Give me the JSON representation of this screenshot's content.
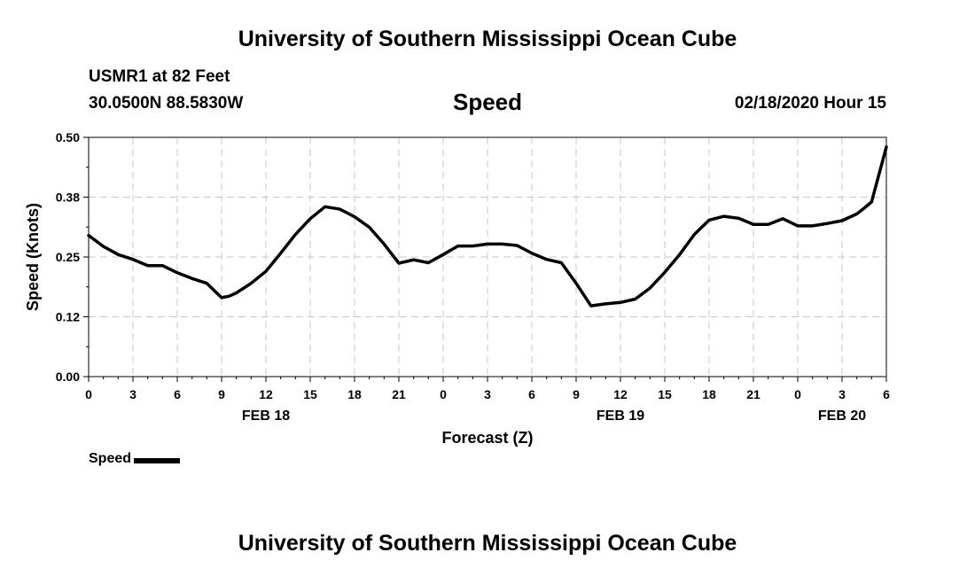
{
  "header": {
    "title": "University of Southern Mississippi Ocean Cube",
    "station": "USMR1 at 82 Feet",
    "coordinates": "30.0500N 88.5830W",
    "variable": "Speed",
    "timestamp": "02/18/2020 Hour 15"
  },
  "footer": {
    "title": "University of Southern Mississippi Ocean Cube"
  },
  "legend": {
    "label": "Speed",
    "color": "#000000"
  },
  "chart_data": {
    "type": "line",
    "xlabel": "Forecast (Z)",
    "ylabel": "Speed (Knots)",
    "x_unit": "hours from 00Z FEB 18",
    "xlim": [
      0,
      54
    ],
    "ylim": [
      0,
      0.5
    ],
    "yticks": [
      "0.00",
      "0.12",
      "0.25",
      "0.38",
      "0.50"
    ],
    "xtick_labels": [
      "0",
      "3",
      "6",
      "9",
      "12",
      "15",
      "18",
      "21",
      "0",
      "3",
      "6",
      "9",
      "12",
      "15",
      "18",
      "21",
      "0",
      "3",
      "6"
    ],
    "date_labels": [
      {
        "label": "FEB 18",
        "hour": 12
      },
      {
        "label": "FEB 19",
        "hour": 36
      },
      {
        "label": "FEB 20",
        "hour": 51
      }
    ],
    "grid": true,
    "series": [
      {
        "name": "Speed",
        "color": "#000000",
        "x": [
          0,
          1,
          2,
          3,
          4,
          5,
          6,
          7,
          8,
          9,
          9.5,
          10,
          11,
          12,
          13,
          14,
          15,
          16,
          17,
          18,
          19,
          20,
          21,
          22,
          23,
          24,
          25,
          26,
          27,
          28,
          29,
          30,
          31,
          32,
          33,
          34,
          35,
          36,
          37,
          38,
          39,
          40,
          41,
          42,
          43,
          44,
          45,
          46,
          47,
          48,
          49,
          50,
          51,
          52,
          52.5,
          53,
          54
        ],
        "values": [
          0.295,
          0.272,
          0.255,
          0.245,
          0.232,
          0.232,
          0.217,
          0.205,
          0.195,
          0.165,
          0.168,
          0.175,
          0.195,
          0.22,
          0.258,
          0.297,
          0.33,
          0.355,
          0.35,
          0.334,
          0.312,
          0.277,
          0.237,
          0.244,
          0.238,
          0.255,
          0.273,
          0.273,
          0.277,
          0.277,
          0.274,
          0.258,
          0.245,
          0.238,
          0.195,
          0.148,
          0.152,
          0.155,
          0.162,
          0.185,
          0.218,
          0.255,
          0.297,
          0.327,
          0.335,
          0.331,
          0.318,
          0.318,
          0.33,
          0.315,
          0.315,
          0.32,
          0.326,
          0.34,
          0.352,
          0.365,
          0.48
        ]
      }
    ]
  }
}
